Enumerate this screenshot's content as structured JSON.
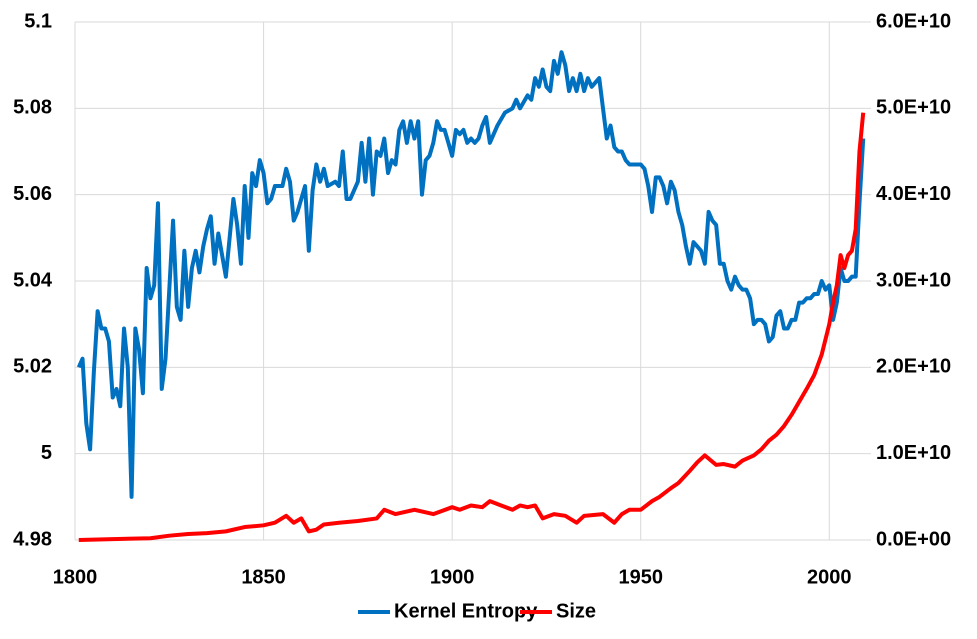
{
  "chart_data": {
    "type": "line",
    "xlim": [
      1800,
      2010
    ],
    "xticks": [
      1800,
      1850,
      1900,
      1950,
      2000
    ],
    "ylim": [
      4.98,
      5.1
    ],
    "yticks": [
      4.98,
      5,
      5.02,
      5.04,
      5.06,
      5.08,
      5.1
    ],
    "y2lim": [
      0,
      60000000000
    ],
    "y2ticks": [
      {
        "value": 0,
        "label": "0.0E+00"
      },
      {
        "value": 10000000000,
        "label": "1.0E+10"
      },
      {
        "value": 20000000000,
        "label": "2.0E+10"
      },
      {
        "value": 30000000000,
        "label": "3.0E+10"
      },
      {
        "value": 40000000000,
        "label": "4.0E+10"
      },
      {
        "value": 50000000000,
        "label": "5.0E+10"
      },
      {
        "value": 60000000000,
        "label": "6.0E+10"
      }
    ],
    "grid": true,
    "legend": "bottom",
    "series": [
      {
        "name": "Kernel Entropy",
        "color": "#0070C0",
        "x": [
          1801,
          1802,
          1803,
          1804,
          1805,
          1806,
          1807,
          1808,
          1809,
          1810,
          1811,
          1812,
          1813,
          1814,
          1815,
          1816,
          1817,
          1818,
          1819,
          1820,
          1821,
          1822,
          1823,
          1824,
          1826,
          1827,
          1828,
          1829,
          1830,
          1831,
          1832,
          1833,
          1834,
          1835,
          1836,
          1837,
          1838,
          1840,
          1842,
          1843,
          1844,
          1845,
          1846,
          1847,
          1848,
          1849,
          1850,
          1851,
          1852,
          1853,
          1855,
          1856,
          1857,
          1858,
          1859,
          1861,
          1862,
          1863,
          1864,
          1865,
          1866,
          1867,
          1869,
          1870,
          1871,
          1872,
          1873,
          1875,
          1876,
          1877,
          1878,
          1879,
          1880,
          1881,
          1882,
          1883,
          1884,
          1885,
          1886,
          1887,
          1888,
          1889,
          1890,
          1891,
          1892,
          1893,
          1894,
          1895,
          1896,
          1897,
          1898,
          1899,
          1900,
          1901,
          1902,
          1903,
          1904,
          1905,
          1906,
          1907,
          1908,
          1909,
          1910,
          1912,
          1914,
          1916,
          1917,
          1918,
          1920,
          1921,
          1922,
          1923,
          1924,
          1925,
          1926,
          1927,
          1928,
          1929,
          1930,
          1931,
          1932,
          1933,
          1934,
          1935,
          1936,
          1937,
          1938,
          1939,
          1940,
          1941,
          1942,
          1943,
          1944,
          1945,
          1946,
          1947,
          1948,
          1949,
          1950,
          1951,
          1952,
          1953,
          1954,
          1955,
          1956,
          1957,
          1958,
          1959,
          1960,
          1961,
          1962,
          1963,
          1964,
          1965,
          1966,
          1967,
          1968,
          1969,
          1970,
          1971,
          1972,
          1973,
          1974,
          1975,
          1976,
          1977,
          1978,
          1979,
          1980,
          1981,
          1982,
          1983,
          1984,
          1985,
          1986,
          1987,
          1988,
          1989,
          1990,
          1991,
          1992,
          1993,
          1994,
          1995,
          1996,
          1997,
          1998,
          1999,
          2000,
          2001,
          2002,
          2003,
          2004,
          2005,
          2006,
          2007,
          2008,
          2009
        ],
        "values": [
          5.02,
          5.022,
          5.007,
          5.001,
          5.019,
          5.033,
          5.029,
          5.029,
          5.026,
          5.013,
          5.015,
          5.011,
          5.029,
          5.02,
          4.99,
          5.029,
          5.024,
          5.014,
          5.043,
          5.036,
          5.039,
          5.058,
          5.015,
          5.022,
          5.054,
          5.034,
          5.031,
          5.047,
          5.034,
          5.043,
          5.047,
          5.042,
          5.048,
          5.052,
          5.055,
          5.044,
          5.051,
          5.041,
          5.059,
          5.053,
          5.044,
          5.062,
          5.05,
          5.065,
          5.062,
          5.068,
          5.065,
          5.058,
          5.059,
          5.062,
          5.062,
          5.066,
          5.063,
          5.054,
          5.056,
          5.062,
          5.047,
          5.061,
          5.067,
          5.063,
          5.066,
          5.062,
          5.063,
          5.062,
          5.07,
          5.059,
          5.059,
          5.063,
          5.072,
          5.063,
          5.073,
          5.06,
          5.07,
          5.069,
          5.073,
          5.065,
          5.068,
          5.067,
          5.075,
          5.077,
          5.072,
          5.077,
          5.073,
          5.077,
          5.06,
          5.068,
          5.069,
          5.072,
          5.077,
          5.075,
          5.075,
          5.072,
          5.069,
          5.075,
          5.074,
          5.075,
          5.072,
          5.073,
          5.072,
          5.073,
          5.076,
          5.078,
          5.072,
          5.076,
          5.079,
          5.08,
          5.082,
          5.08,
          5.083,
          5.082,
          5.087,
          5.085,
          5.089,
          5.085,
          5.084,
          5.091,
          5.088,
          5.093,
          5.09,
          5.084,
          5.087,
          5.084,
          5.088,
          5.084,
          5.087,
          5.085,
          5.086,
          5.087,
          5.08,
          5.073,
          5.076,
          5.071,
          5.07,
          5.07,
          5.068,
          5.067,
          5.067,
          5.067,
          5.067,
          5.066,
          5.062,
          5.056,
          5.064,
          5.064,
          5.062,
          5.058,
          5.063,
          5.061,
          5.056,
          5.053,
          5.048,
          5.044,
          5.049,
          5.048,
          5.047,
          5.044,
          5.056,
          5.054,
          5.053,
          5.044,
          5.044,
          5.04,
          5.038,
          5.041,
          5.039,
          5.038,
          5.038,
          5.036,
          5.03,
          5.031,
          5.031,
          5.03,
          5.026,
          5.027,
          5.032,
          5.033,
          5.029,
          5.029,
          5.031,
          5.031,
          5.035,
          5.035,
          5.036,
          5.036,
          5.037,
          5.037,
          5.04,
          5.038,
          5.039,
          5.031,
          5.035,
          5.043,
          5.04,
          5.04,
          5.041,
          5.041,
          5.058,
          5.073
        ]
      },
      {
        "name": "Size",
        "color": "#FF0000",
        "axis": "y2",
        "x": [
          1801,
          1810,
          1820,
          1825,
          1830,
          1835,
          1840,
          1845,
          1850,
          1853,
          1856,
          1858,
          1860,
          1862,
          1864,
          1866,
          1870,
          1875,
          1880,
          1882,
          1885,
          1890,
          1895,
          1900,
          1902,
          1905,
          1908,
          1910,
          1913,
          1916,
          1918,
          1920,
          1922,
          1924,
          1927,
          1930,
          1933,
          1935,
          1940,
          1943,
          1945,
          1947,
          1950,
          1953,
          1955,
          1958,
          1960,
          1963,
          1965,
          1967,
          1970,
          1972,
          1975,
          1977,
          1980,
          1982,
          1984,
          1986,
          1988,
          1990,
          1992,
          1994,
          1996,
          1998,
          2000,
          2001,
          2002,
          2003,
          2004,
          2005,
          2006,
          2007,
          2008,
          2009
        ],
        "values": [
          0,
          100000000.0,
          200000000.0,
          500000000.0,
          700000000.0,
          800000000.0,
          1000000000.0,
          1500000000.0,
          1700000000.0,
          2000000000.0,
          2800000000.0,
          2000000000.0,
          2500000000.0,
          1000000000.0,
          1200000000.0,
          1800000000.0,
          2000000000.0,
          2200000000.0,
          2500000000.0,
          3500000000.0,
          3000000000.0,
          3500000000.0,
          3000000000.0,
          3800000000.0,
          3500000000.0,
          4000000000.0,
          3800000000.0,
          4500000000.0,
          4000000000.0,
          3500000000.0,
          4000000000.0,
          3800000000.0,
          4000000000.0,
          2500000000.0,
          3000000000.0,
          2800000000.0,
          2000000000.0,
          2800000000.0,
          3000000000.0,
          2000000000.0,
          3000000000.0,
          3500000000.0,
          3500000000.0,
          4500000000.0,
          5000000000.0,
          6000000000.0,
          6600000000.0,
          8000000000.0,
          9000000000.0,
          9800000000.0,
          8700000000.0,
          8800000000.0,
          8500000000.0,
          9200000000.0,
          9800000000.0,
          10500000000.0,
          11500000000.0,
          12200000000.0,
          13200000000.0,
          14500000000.0,
          16000000000.0,
          17500000000.0,
          19100000000.0,
          21500000000.0,
          25000000000.0,
          27500000000.0,
          29500000000.0,
          33000000000.0,
          31500000000.0,
          33000000000.0,
          33500000000.0,
          36000000000.0,
          45000000000.0,
          49500000000.0
        ]
      }
    ]
  }
}
